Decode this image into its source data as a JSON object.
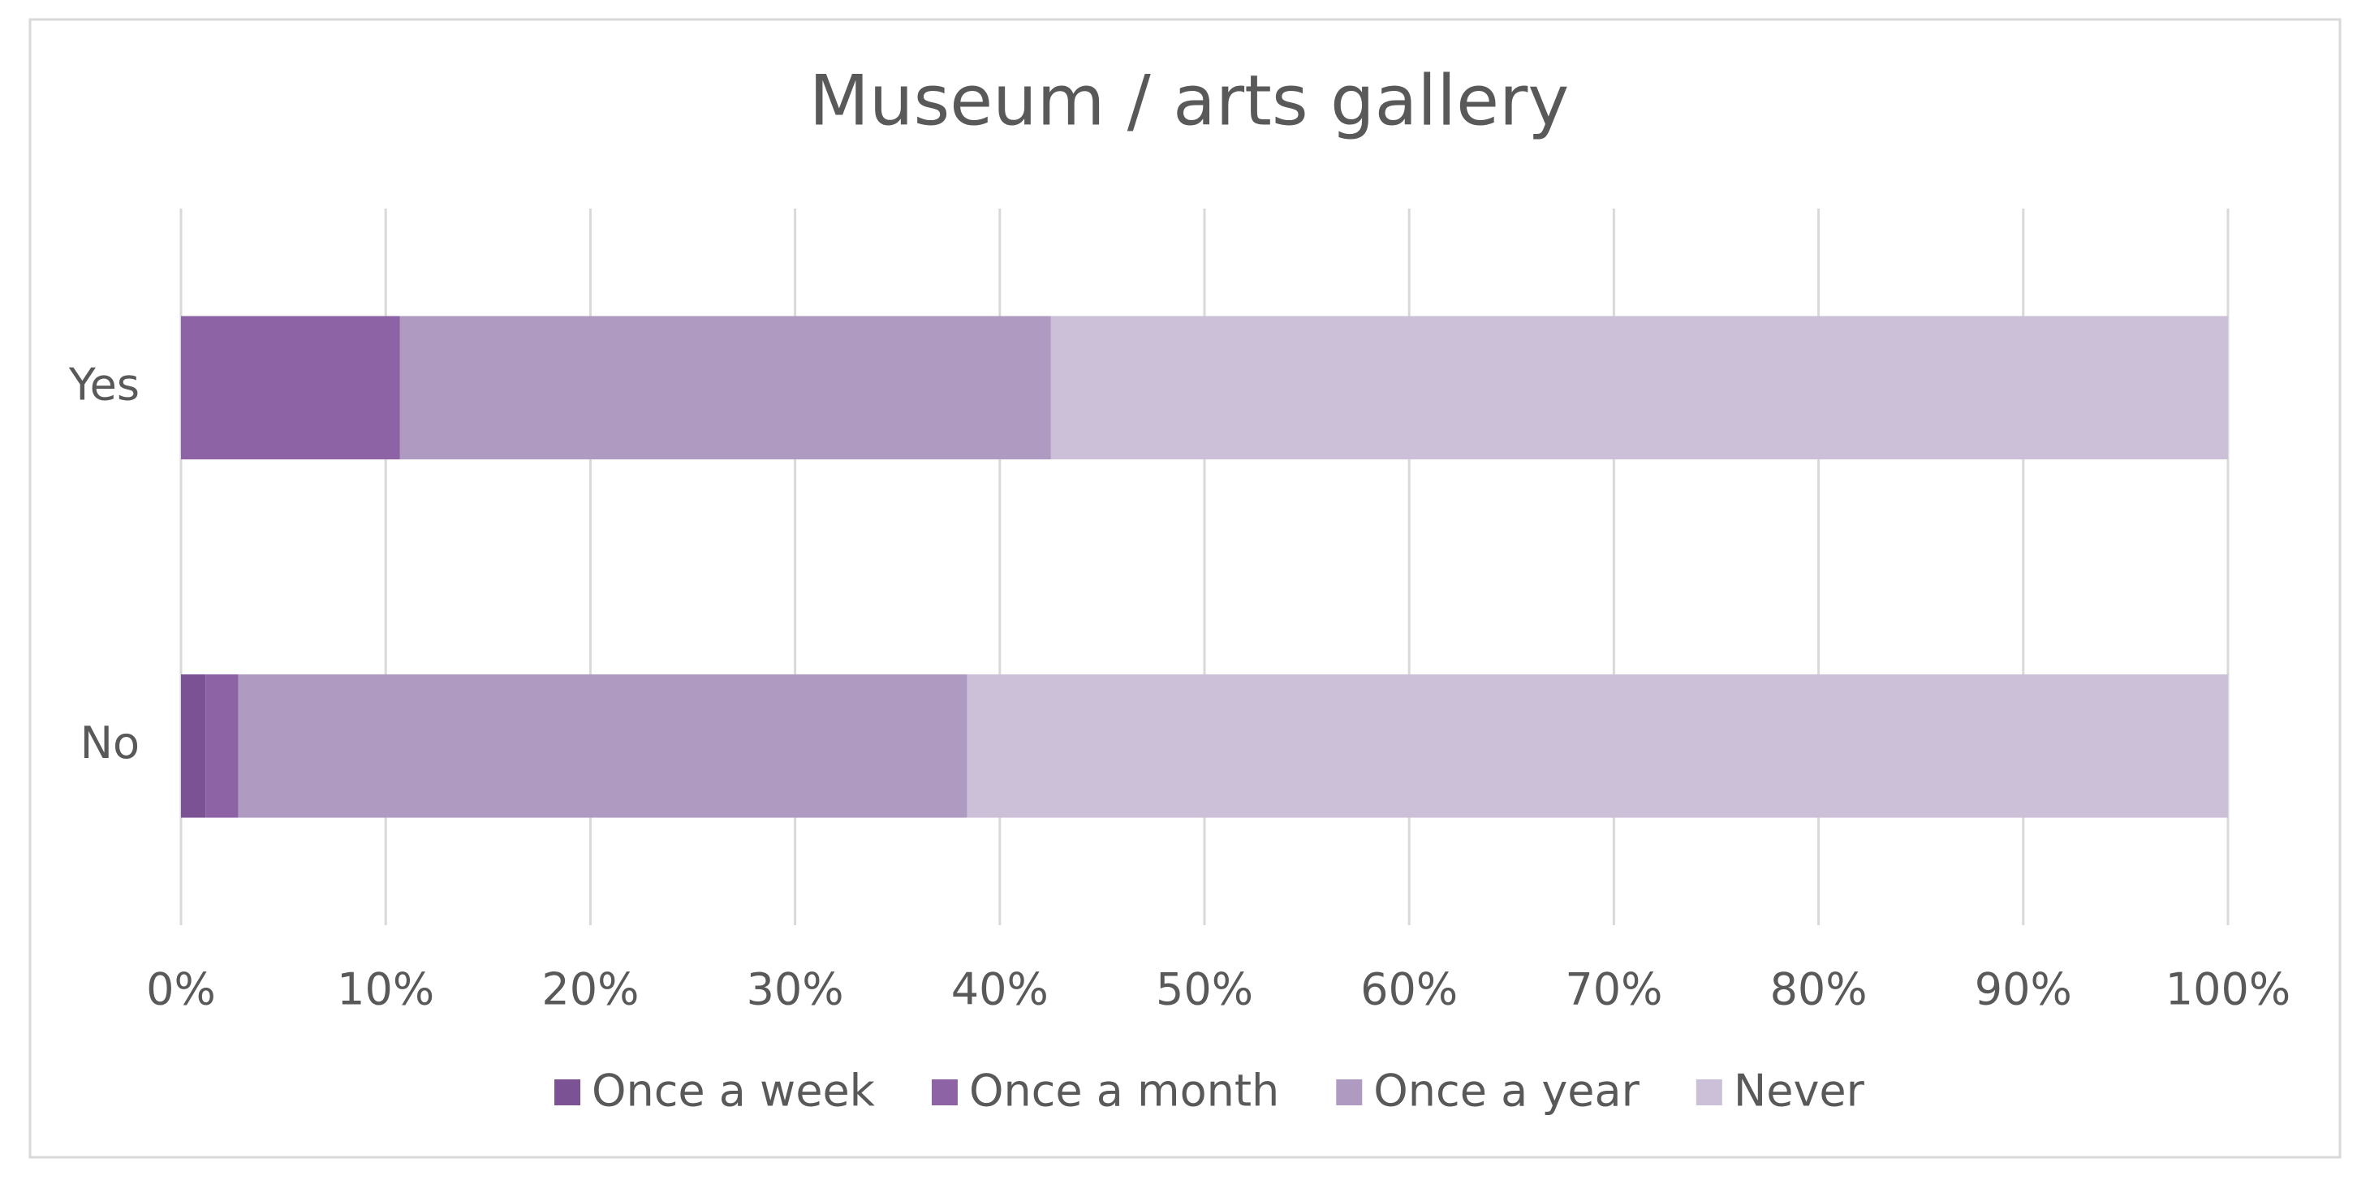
{
  "chart_data": {
    "type": "stacked-barh",
    "title": "Museum / arts gallery",
    "categories": [
      "Yes",
      "No"
    ],
    "series": [
      {
        "name": "Once a week",
        "color": "#7b5394",
        "values": [
          0,
          1.2
        ]
      },
      {
        "name": "Once a month",
        "color": "#8e63a6",
        "values": [
          10.7,
          1.6
        ]
      },
      {
        "name": "Once a year",
        "color": "#af9bc2",
        "values": [
          31.8,
          35.6
        ]
      },
      {
        "name": "Never",
        "color": "#cbc0d8",
        "values": [
          57.5,
          61.6
        ]
      }
    ],
    "xlim": [
      0,
      100
    ],
    "xticks": [
      {
        "value": 0,
        "label": "0%"
      },
      {
        "value": 10,
        "label": "10%"
      },
      {
        "value": 20,
        "label": "20%"
      },
      {
        "value": 30,
        "label": "30%"
      },
      {
        "value": 40,
        "label": "40%"
      },
      {
        "value": 50,
        "label": "50%"
      },
      {
        "value": 60,
        "label": "60%"
      },
      {
        "value": 70,
        "label": "70%"
      },
      {
        "value": 80,
        "label": "80%"
      },
      {
        "value": 90,
        "label": "90%"
      },
      {
        "value": 100,
        "label": "100%"
      }
    ],
    "grid": true,
    "legend": "bottom"
  }
}
